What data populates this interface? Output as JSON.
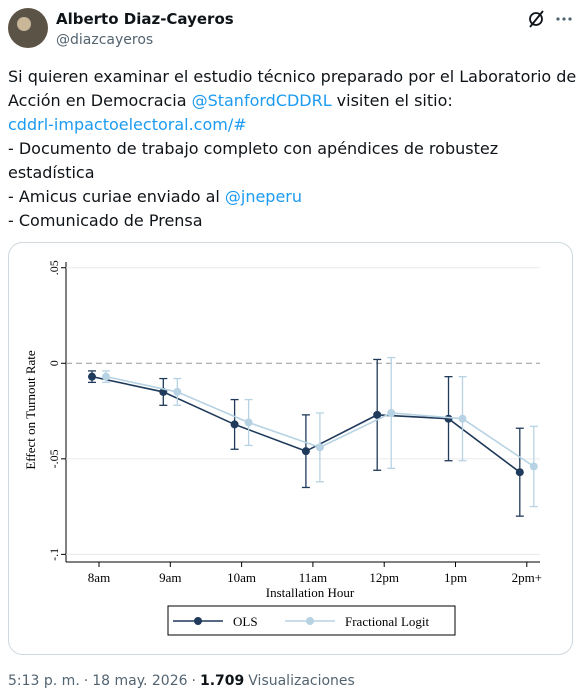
{
  "tweet": {
    "author": "Alberto Diaz-Cayeros",
    "handle": "@diazcayeros",
    "text_lines": [
      [
        {
          "text": "Si quieren examinar el estudio técnico preparado por el Laboratorio de"
        }
      ],
      [
        {
          "text": "Acción en Democracia"
        },
        {
          "link": "@StanfordCDDRL"
        },
        {
          "text": "visiten el sitio:"
        }
      ],
      [
        {
          "link": "cddrl-impactoelectoral.com/#"
        }
      ],
      [
        {
          "text": "- Documento de trabajo completo con apéndices de robustez"
        }
      ],
      [
        {
          "text": "estadística"
        }
      ],
      [
        {
          "text": "- Amicus curiae enviado al"
        },
        {
          "link": "@jneperu"
        }
      ],
      [
        {
          "text": "- Comunicado de Prensa"
        }
      ]
    ]
  },
  "chart_data": {
    "type": "errorbar",
    "x_label": "Installation Hour",
    "y_label": "Effect on Turnout Rate",
    "categories": [
      "8am",
      "9am",
      "10am",
      "11am",
      "12pm",
      "1pm",
      "2pm+"
    ],
    "series": [
      {
        "name": "OLS",
        "color": "#1f3a5a",
        "values": [
          -0.007,
          -0.015,
          -0.032,
          -0.046,
          -0.027,
          -0.029,
          -0.057
        ],
        "errors": [
          0.003,
          0.007,
          0.013,
          0.019,
          0.029,
          0.022,
          0.023
        ]
      },
      {
        "name": "Fractional Logit",
        "color": "#b7d3e3",
        "values": [
          -0.007,
          -0.015,
          -0.031,
          -0.044,
          -0.026,
          -0.029,
          -0.054
        ],
        "errors": [
          0.003,
          0.007,
          0.012,
          0.018,
          0.029,
          0.022,
          0.021
        ]
      }
    ],
    "ylim": [
      -0.104,
      0.053
    ],
    "yticks": [
      {
        "value": 0.05,
        "label": ".05"
      },
      0,
      {
        "value": -0.05,
        "label": "-.05"
      },
      {
        "value": -0.1,
        "label": "-.1"
      }
    ],
    "grid": true,
    "legend": "bottom"
  },
  "footer": {
    "time": "5:13 p. m.",
    "separator": "·",
    "date": "18 may. 2026",
    "views": "1.709",
    "views_label": "Visualizaciones"
  }
}
